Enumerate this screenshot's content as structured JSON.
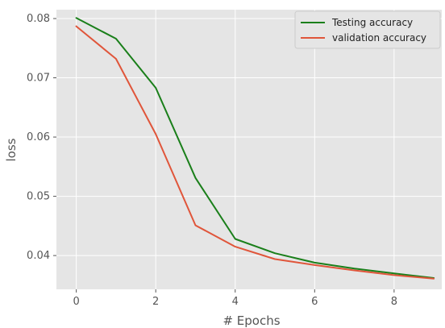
{
  "chart_data": {
    "type": "line",
    "xlabel": "# Epochs",
    "ylabel": "loss",
    "xlim": [
      -0.5,
      9.2
    ],
    "ylim": [
      0.0343,
      0.0815
    ],
    "xticks": [
      0,
      2,
      4,
      6,
      8
    ],
    "yticks": [
      0.04,
      0.05,
      0.06,
      0.07,
      0.08
    ],
    "xtick_labels": [
      "0",
      "2",
      "4",
      "6",
      "8"
    ],
    "ytick_labels": [
      "0.04",
      "0.05",
      "0.06",
      "0.07",
      "0.08"
    ],
    "grid": true,
    "background": "#e5e5e5",
    "legend_position": "top-right",
    "x": [
      0,
      1,
      2,
      3,
      4,
      5,
      6,
      7,
      8,
      9
    ],
    "series": [
      {
        "name": "Testing accuracy",
        "color": "#1a7f1a",
        "values": [
          0.0801,
          0.0766,
          0.0683,
          0.0531,
          0.0428,
          0.0404,
          0.0388,
          0.0378,
          0.037,
          0.0362
        ]
      },
      {
        "name": "validation accuracy",
        "color": "#e0553a",
        "values": [
          0.0787,
          0.0732,
          0.0605,
          0.0451,
          0.0415,
          0.0394,
          0.0384,
          0.0375,
          0.0367,
          0.0361
        ]
      }
    ]
  }
}
